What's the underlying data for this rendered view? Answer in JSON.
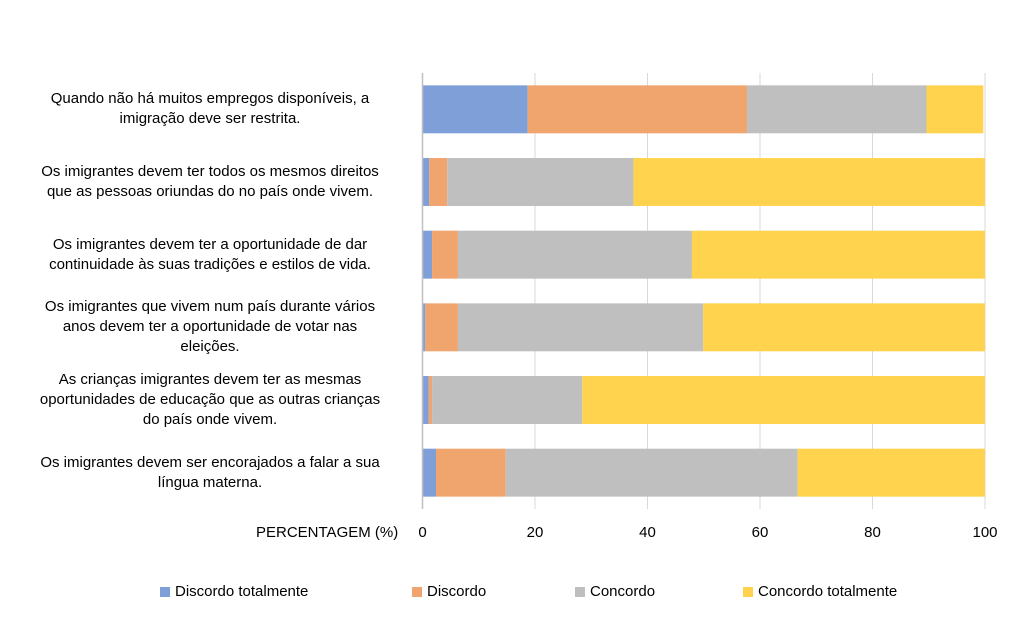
{
  "chart_data": {
    "type": "bar",
    "orientation": "horizontal",
    "stacked": true,
    "title": "",
    "xlabel": "PERCENTAGEM (%)",
    "ylabel": "",
    "xlim": [
      0,
      100
    ],
    "x_ticks": [
      "0",
      "20",
      "40",
      "60",
      "80",
      "100"
    ],
    "grid": true,
    "legend_position": "bottom",
    "categories": [
      "Quando não há muitos empregos disponíveis, a imigração deve ser restrita.",
      "Os imigrantes devem ter todos os mesmos direitos que as pessoas oriundas do no país onde vivem.",
      "Os imigrantes devem ter a oportunidade de dar continuidade às suas tradições e estilos de vida.",
      "Os imigrantes que vivem num país durante vários anos devem ter a oportunidade de votar nas eleições.",
      "As crianças imigrantes devem ter as mesmas oportunidades de educação que as outras crianças do país onde vivem.",
      "Os imigrantes devem ser encorajados a falar a sua língua materna."
    ],
    "category_lines": [
      [
        "Quando não há muitos empregos disponíveis, a",
        "imigração deve ser restrita."
      ],
      [
        "Os imigrantes devem ter todos os mesmos direitos",
        "que as pessoas oriundas do no país onde vivem."
      ],
      [
        "Os imigrantes devem ter a oportunidade de dar",
        "continuidade às suas tradições e estilos de vida."
      ],
      [
        "Os imigrantes que vivem num país durante vários",
        "anos devem ter a oportunidade de votar nas",
        "eleições."
      ],
      [
        "As crianças imigrantes devem ter as mesmas",
        "oportunidades de educação que as outras crianças",
        "do país onde vivem."
      ],
      [
        "Os imigrantes devem ser encorajados a falar a sua",
        "língua materna."
      ]
    ],
    "series": [
      {
        "name": "Discordo totalmente",
        "color": "#7F9FD8",
        "values": [
          18.7,
          1.2,
          1.7,
          0.5,
          1.1,
          2.4
        ]
      },
      {
        "name": "Discordo",
        "color": "#F0A46E",
        "values": [
          39.0,
          3.2,
          4.6,
          5.8,
          0.6,
          12.4
        ]
      },
      {
        "name": "Concordo",
        "color": "#BFBFBF",
        "values": [
          31.9,
          33.1,
          41.6,
          43.6,
          26.7,
          51.9
        ]
      },
      {
        "name": "Concordo totalmente",
        "color": "#FFD34D",
        "values": [
          10.1,
          62.5,
          52.1,
          50.1,
          71.6,
          33.3
        ]
      }
    ],
    "gridline_color": "#D9D9D9"
  }
}
